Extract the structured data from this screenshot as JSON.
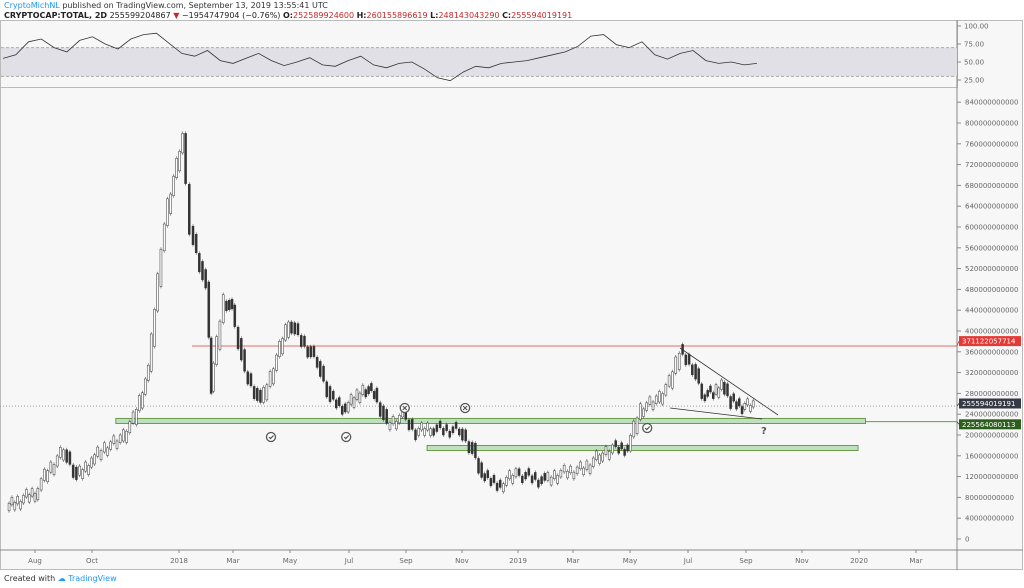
{
  "header": {
    "author": "CryptoMichNL",
    "published": "published on TradingView.com, September 13, 2019 13:55:41 UTC",
    "symbol": "CRYPTOCAP:TOTAL, 2D",
    "last": "255599204867",
    "change_arrow": "▼",
    "change": "−1954747904 (−0.76%)",
    "open_label": "O:",
    "open": "252589924600",
    "high_label": "H:",
    "high": "260155896619",
    "low_label": "L:",
    "low": "248143043290",
    "close_label": "C:",
    "close": "255594019191"
  },
  "footer": {
    "created_with": "Created with",
    "brand": "TradingView"
  },
  "colors": {
    "up": "#ffffff",
    "down": "#333333",
    "red_line": "#e53935",
    "green_zone": "#a5d6a7",
    "green_border": "#558b2f",
    "rsi_band": "#e0e0e6",
    "accent": "#2196f3"
  },
  "chart_data": [
    {
      "type": "line",
      "title": "",
      "panel": "price",
      "y_ticks": [
        "840000000000",
        "800000000000",
        "760000000000",
        "720000000000",
        "680000000000",
        "640000000000",
        "600000000000",
        "560000000000",
        "520000000000",
        "480000000000",
        "440000000000",
        "400000000000",
        "360000000000",
        "320000000000",
        "280000000000",
        "240000000000",
        "200000000000",
        "160000000000",
        "120000000000",
        "80000000000",
        "40000000000",
        "0"
      ],
      "x_ticks": [
        "Aug",
        "Oct",
        "2018",
        "Mar",
        "May",
        "Jul",
        "Sep",
        "Nov",
        "2019",
        "Mar",
        "May",
        "Jul",
        "Sep",
        "Nov",
        "2020",
        "Mar"
      ],
      "ylim": [
        0,
        840000000000
      ],
      "xlim": [
        "2017-07-01",
        "2020-04-15"
      ],
      "grid": false,
      "series": [
        {
          "x": [
            "2017-07-01",
            "2017-08-01",
            "2017-08-15",
            "2017-09-01",
            "2017-09-15",
            "2017-10-01",
            "2017-10-15",
            "2017-11-01",
            "2017-11-15",
            "2017-12-01",
            "2017-12-15",
            "2017-12-22",
            "2018-01-07",
            "2018-01-15",
            "2018-02-01",
            "2018-02-06",
            "2018-02-20",
            "2018-03-01",
            "2018-03-15",
            "2018-04-01",
            "2018-04-15",
            "2018-05-01",
            "2018-05-15",
            "2018-06-01",
            "2018-06-15",
            "2018-07-01",
            "2018-07-20",
            "2018-08-01",
            "2018-08-15",
            "2018-09-01",
            "2018-09-15",
            "2018-10-01",
            "2018-10-15",
            "2018-11-01",
            "2018-11-15",
            "2018-11-25",
            "2018-12-15",
            "2019-01-01",
            "2019-01-15",
            "2019-02-01",
            "2019-02-15",
            "2019-03-01",
            "2019-03-15",
            "2019-04-01",
            "2019-04-15",
            "2019-05-01",
            "2019-05-15",
            "2019-06-01",
            "2019-06-15",
            "2019-06-26",
            "2019-07-10",
            "2019-07-20",
            "2019-08-01",
            "2019-08-10",
            "2019-08-20",
            "2019-09-01",
            "2019-09-13"
          ],
          "values": [
            60000000000,
            90000000000,
            130000000000,
            170000000000,
            120000000000,
            150000000000,
            175000000000,
            190000000000,
            230000000000,
            320000000000,
            560000000000,
            640000000000,
            770000000000,
            600000000000,
            480000000000,
            290000000000,
            460000000000,
            440000000000,
            320000000000,
            260000000000,
            330000000000,
            420000000000,
            380000000000,
            340000000000,
            270000000000,
            250000000000,
            290000000000,
            280000000000,
            220000000000,
            235000000000,
            205000000000,
            215000000000,
            210000000000,
            210000000000,
            170000000000,
            120000000000,
            105000000000,
            125000000000,
            120000000000,
            110000000000,
            125000000000,
            130000000000,
            135000000000,
            160000000000,
            175000000000,
            175000000000,
            250000000000,
            265000000000,
            300000000000,
            360000000000,
            330000000000,
            280000000000,
            280000000000,
            300000000000,
            265000000000,
            255000000000,
            255594019191
          ]
        }
      ],
      "price_labels": [
        {
          "value": "371122057714",
          "color": "#e53935"
        },
        {
          "value": "255594019191",
          "color": "#363a45"
        },
        {
          "value": "225564080113",
          "color": "#2e5e1e"
        }
      ],
      "zones": [
        {
          "from": 222000000000,
          "to": 232000000000,
          "start": "2017-10-25",
          "end": "2020-01-10"
        },
        {
          "from": 170000000000,
          "to": 180000000000,
          "start": "2018-09-25",
          "end": "2020-01-02"
        }
      ],
      "resistance": {
        "value": 371122057714,
        "start": "2018-01-15"
      },
      "annotations": {
        "question_mark": "?",
        "checks": [
          "2018-04-10",
          "2018-06-30",
          "2019-05-20"
        ],
        "crosses": [
          "2018-09-01",
          "2018-11-05"
        ]
      }
    },
    {
      "type": "line",
      "panel": "rsi",
      "y_ticks": [
        "100.00",
        "75.00",
        "50.00",
        "25.00"
      ],
      "ylim": [
        15,
        100
      ],
      "band": [
        30,
        70
      ],
      "values": [
        55,
        60,
        78,
        82,
        70,
        64,
        80,
        85,
        75,
        68,
        82,
        88,
        90,
        76,
        62,
        58,
        66,
        52,
        48,
        55,
        62,
        52,
        45,
        50,
        56,
        46,
        44,
        52,
        58,
        46,
        42,
        48,
        50,
        40,
        28,
        24,
        36,
        44,
        42,
        48,
        50,
        52,
        56,
        60,
        64,
        72,
        86,
        88,
        74,
        70,
        78,
        60,
        54,
        62,
        66,
        52,
        48,
        50,
        46,
        48
      ]
    }
  ]
}
